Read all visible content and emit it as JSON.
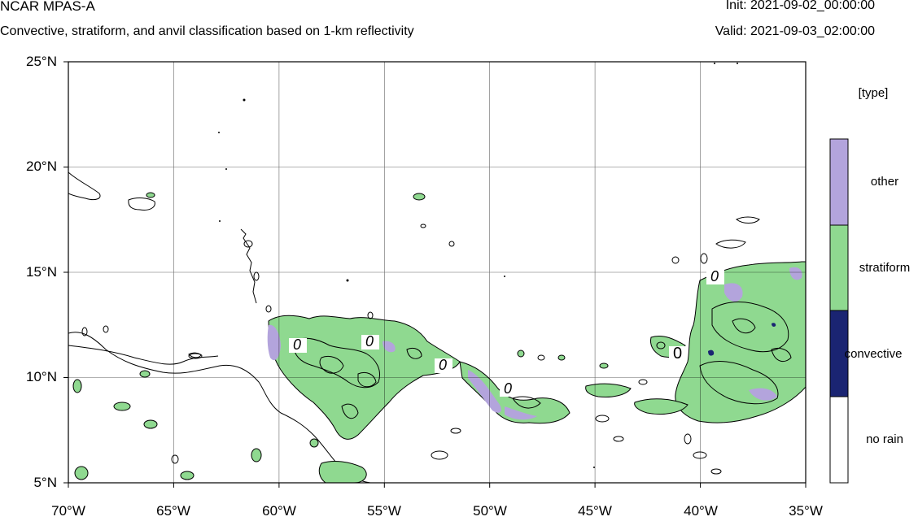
{
  "header": {
    "model": "NCAR MPAS-A",
    "subtitle": "Convective, stratiform, and anvil classification based on 1-km reflectivity",
    "init": "Init: 2021-09-02_00:00:00",
    "valid": "Valid: 2021-09-03_02:00:00"
  },
  "map": {
    "lon_range": [
      -70,
      -35
    ],
    "lat_range": [
      5,
      25
    ],
    "grid": true,
    "y_ticks": [
      "25°N",
      "20°N",
      "15°N",
      "10°N",
      "5°N"
    ],
    "x_ticks": [
      "70°W",
      "65°W",
      "60°W",
      "55°W",
      "50°W",
      "45°W",
      "40°W",
      "35°W"
    ],
    "contour_labels": [
      "0",
      "0",
      "0",
      "0",
      "0",
      "0"
    ]
  },
  "legend": {
    "title": "[type]",
    "items": [
      {
        "label": "other",
        "color": "#b3a4dc"
      },
      {
        "label": "stratiform",
        "color": "#8fd990"
      },
      {
        "label": "convective",
        "color": "#1a2472"
      },
      {
        "label": "no rain",
        "color": "#ffffff"
      }
    ]
  }
}
